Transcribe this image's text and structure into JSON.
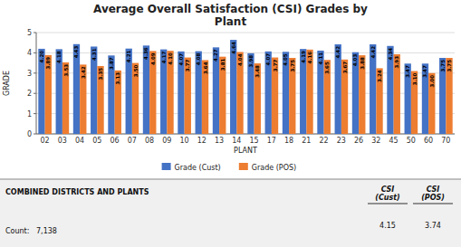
{
  "chart_data": {
    "type": "bar",
    "title": "Average Overall Satisfaction (CSI) Grades by\nPlant",
    "xlabel": "PLANT",
    "ylabel": "GRADE",
    "categories": [
      "02",
      "03",
      "04",
      "05",
      "06",
      "07",
      "08",
      "09",
      "10",
      "12",
      "13",
      "14",
      "15",
      "17",
      "18",
      "21",
      "22",
      "23",
      "26",
      "32",
      "45",
      "50",
      "60",
      "70"
    ],
    "series": [
      {
        "name": "Grade (Cust)",
        "color": "#4472C4",
        "values": [
          4.2,
          4.18,
          4.43,
          4.31,
          3.87,
          4.21,
          4.36,
          4.17,
          4.07,
          4.08,
          4.27,
          4.64,
          3.98,
          4.07,
          4.05,
          4.19,
          4.11,
          4.42,
          4.03,
          4.42,
          4.34,
          3.47,
          3.47,
          3.75
        ],
        "value_labels": [
          "4.20",
          "4.18",
          "4.43",
          "4.31",
          "3.87",
          "4.21",
          "4.36",
          "4.17",
          "4.07",
          "4.08",
          "4.27",
          "4.64",
          "3.98",
          "4.07",
          "4.05",
          "4.19",
          "4.11",
          "4.42",
          "4.03",
          "4.42",
          "4.34",
          "3.47",
          "3.47",
          "3.75"
        ]
      },
      {
        "name": "Grade (POS)",
        "color": "#ED7D31",
        "values": [
          3.89,
          3.53,
          3.42,
          3.35,
          3.13,
          3.5,
          4.09,
          4.1,
          3.77,
          3.64,
          3.81,
          4.04,
          3.48,
          3.77,
          3.75,
          4.16,
          3.65,
          3.67,
          3.88,
          3.24,
          3.93,
          3.1,
          3.0,
          3.75
        ],
        "value_labels": [
          "3.89",
          "3.53",
          "3.42",
          "3.35",
          "3.13",
          "3.50",
          "4.09",
          "4.10",
          "3.77",
          "3.64",
          "3.81",
          "4.04",
          "3.48",
          "3.77",
          "3.75",
          "4.16",
          "3.65",
          "3.67",
          "3.88",
          "3.24",
          "3.93",
          "3.10",
          "3.00",
          "3.75"
        ]
      }
    ],
    "ylim": [
      0,
      5
    ],
    "yticks": [
      0,
      1,
      2,
      3,
      4,
      5
    ],
    "grid": true,
    "legend": "bottom",
    "data_labels": true,
    "annotations": [
      "COMBINED DISTRICTS AND PLANTS",
      "Count:",
      "7,138",
      "CSI\n(Cust)",
      "CSI\n(POS)",
      "4.15",
      "3.74"
    ]
  }
}
